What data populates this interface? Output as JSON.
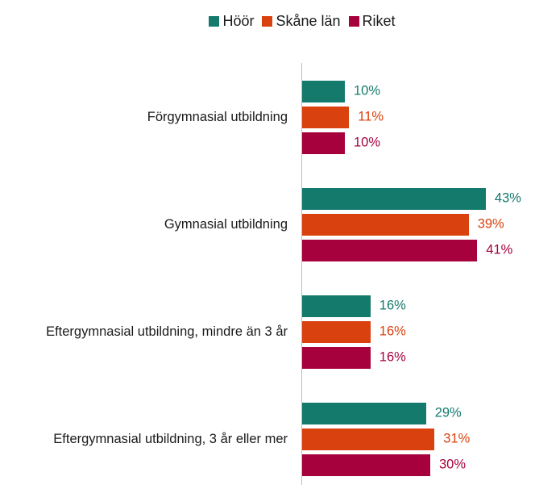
{
  "chart_data": {
    "type": "bar",
    "orientation": "horizontal",
    "categories": [
      "Förgymnasial utbildning",
      "Gymnasial utbildning",
      "Eftergymnasial utbildning, mindre än 3 år",
      "Eftergymnasial utbildning, 3 år eller mer"
    ],
    "series": [
      {
        "name": "Höör",
        "color": "#137a6c",
        "values": [
          10,
          43,
          16,
          29
        ],
        "value_labels": [
          "10%",
          "43%",
          "16%",
          "29%"
        ]
      },
      {
        "name": "Skåne län",
        "color": "#d9410f",
        "values": [
          11,
          39,
          16,
          31
        ],
        "value_labels": [
          "11%",
          "39%",
          "16%",
          "31%"
        ]
      },
      {
        "name": "Riket",
        "color": "#a6003d",
        "values": [
          10,
          41,
          16,
          30
        ],
        "value_labels": [
          "10%",
          "41%",
          "16%",
          "30%"
        ]
      }
    ],
    "legend": "top"
  }
}
